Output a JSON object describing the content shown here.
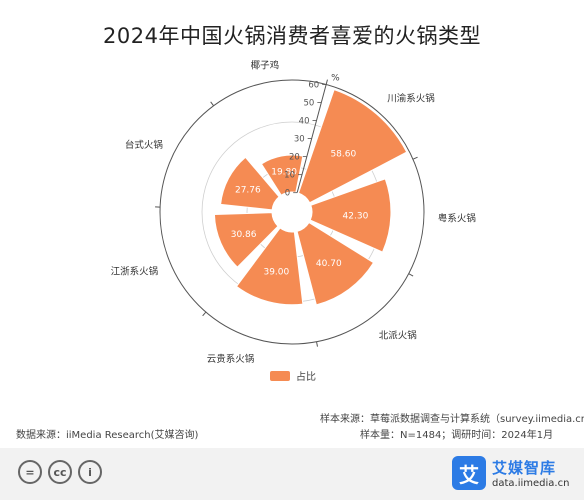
{
  "title": "2024年中国火锅消费者喜爱的火锅类型",
  "chart_data": {
    "type": "polar-bar",
    "categories": [
      "川渝系火锅",
      "粤系火锅",
      "北派火锅",
      "云贵系火锅",
      "江浙系火锅",
      "台式火锅",
      "椰子鸡"
    ],
    "series": [
      {
        "name": "占比",
        "values": [
          58.6,
          42.3,
          40.7,
          39.0,
          30.86,
          27.76,
          19.8
        ]
      }
    ],
    "radial_axis": {
      "unit": "%",
      "ticks": [
        0,
        10,
        20,
        30,
        40,
        50,
        60
      ],
      "range": [
        0,
        60
      ]
    },
    "color": "#F58B53"
  },
  "legend": {
    "label": "占比"
  },
  "footer": {
    "sample_source": "样本来源：草莓派数据调查与计算系统（survey.iimedia.cn）",
    "sample_size": "样本量：N=1484；调研时间：2024年1月",
    "data_source": "数据来源：iiMedia Research(艾媒咨询)"
  },
  "brand": {
    "name": "艾媒智库",
    "url": "data.iimedia.cn",
    "logo_char": "艾"
  },
  "license_icons": [
    "=",
    "cc",
    "i"
  ]
}
